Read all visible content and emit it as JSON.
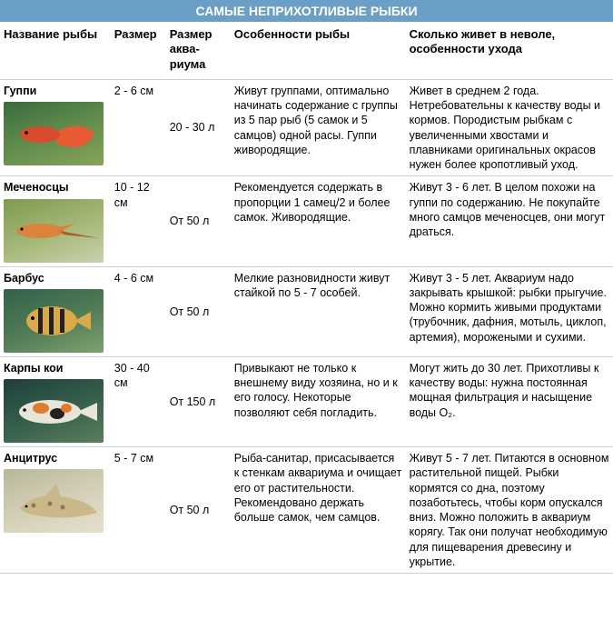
{
  "title": "САМЫЕ НЕПРИХОТЛИВЫЕ РЫБКИ",
  "columns": {
    "name": "Название рыбы",
    "size": "Размер",
    "tank": "Размер аква-риума",
    "features": "Особенности рыбы",
    "care": "Сколько живет в неволе, особенности ухода"
  },
  "rows": [
    {
      "name": "Гуппи",
      "size": "2 - 6 см",
      "tank": "20 - 30 л",
      "features": "Живут группами, оптимально начинать содержание с группы из 5 пар рыб (5 самок и 5 самцов) одной расы. Гуппи живородящие.",
      "care": "Живет в среднем 2 года. Нетребовательны к качеству воды и кормов. Породистым рыбкам с увеличенными хвостами и плавниками оригинальных окрасов нужен более кропотливый уход.",
      "fish_svg": "guppy"
    },
    {
      "name": "Меченосцы",
      "size": "10 - 12 см",
      "tank": "От 50 л",
      "features": "Рекомендуется содержать в пропорции 1 самец/2 и более самок. Живородящие.",
      "care": "Живут 3 - 6 лет. В целом похожи на гуппи по содержанию. Не покупайте много самцов меченосцев, они могут драться.",
      "fish_svg": "sword"
    },
    {
      "name": "Барбус",
      "size": "4 - 6 см",
      "tank": "От 50 л",
      "features": "Мелкие разновидности живут стайкой по 5 - 7 особей.",
      "care": "Живут 3 - 5 лет. Аквариум надо закрывать крышкой: рыбки прыгучие. Можно кормить живыми продуктами (трубочник, дафния, мотыль, циклоп, артемия), морожеными и сухими.",
      "fish_svg": "barb"
    },
    {
      "name": "Карпы кои",
      "size": "30 - 40 см",
      "tank": "От 150 л",
      "features": "Привыкают не только к внешнему виду хозяина, но и к его голосу. Некоторые позволяют себя погладить.",
      "care": "Могут жить до 30 лет. Прихотливы к качеству воды: нужна постоянная мощная фильтрация и насыщение воды О₂.",
      "fish_svg": "koi"
    },
    {
      "name": "Анцитрус",
      "size": "5 - 7 см",
      "tank": "От 50 л",
      "features": "Рыба-санитар, присасывается к стенкам аквариума и очищает его от растительности. Рекомендовано держать больше самок, чем самцов.",
      "care": "Живут 5 - 7 лет. Питаются в основном растительной пищей. Рыбки кормятся со дна, поэтому позаботьтесь, чтобы корм опускался вниз. Можно положить в аквариум корягу. Так они получат необходимую для пищеварения древесину и укрытие.",
      "fish_svg": "anci"
    }
  ],
  "fish_colors": {
    "guppy": {
      "body": "#d84b2e",
      "tail": "#e85a32"
    },
    "sword": {
      "body": "#d9843a",
      "stripe": "#b1562a"
    },
    "barb": {
      "body": "#d9a94a",
      "stripe": "#222"
    },
    "koi": {
      "body": "#e8e4d8",
      "patch1": "#e07a2e",
      "patch2": "#222"
    },
    "anci": {
      "body": "#c9b98a",
      "spot": "#8a7a52"
    }
  }
}
